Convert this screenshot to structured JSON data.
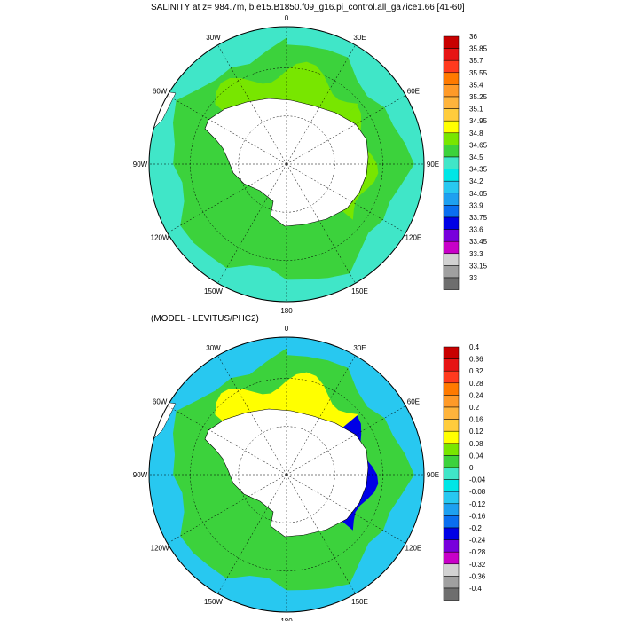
{
  "figure": {
    "top_title": "SALINITY at z= 984.7m, b.e15.B1850.f09_g16.pi_control.all_ga7ice1.66 [41-60]",
    "bottom_title": "(MODEL - LEVITUS/PHC2)"
  },
  "chart_data": [
    {
      "type": "heatmap",
      "projection": "south-polar-stereographic",
      "title": "SALINITY at z= 984.7m, b.e15.B1850.f09_g16.pi_control.all_ga7ice1.66 [41-60]",
      "longitude_labels": [
        "0",
        "30E",
        "60E",
        "90E",
        "120E",
        "150E",
        "180",
        "150W",
        "120W",
        "90W",
        "60W",
        "30W"
      ],
      "colorbar": {
        "labels": [
          "36",
          "35.85",
          "35.7",
          "35.55",
          "35.4",
          "35.25",
          "35.1",
          "34.95",
          "34.8",
          "34.65",
          "34.5",
          "34.35",
          "34.2",
          "34.05",
          "33.9",
          "33.75",
          "33.6",
          "33.45",
          "33.3",
          "33.15",
          "33"
        ],
        "colors": [
          "#c80000",
          "#e61414",
          "#ff3a1e",
          "#ff7a00",
          "#ff9a28",
          "#ffb43c",
          "#ffcc3c",
          "#ffff00",
          "#78e600",
          "#3cd23c",
          "#40e6c8",
          "#00e6e6",
          "#28c8f0",
          "#1ea0f0",
          "#0a6ef0",
          "#0000e6",
          "#7800dc",
          "#c800c8",
          "#d2d2d2",
          "#a0a0a0",
          "#6e6e6e"
        ]
      },
      "regions": [
        {
          "name": "cold-ring",
          "value": 34.5
        },
        {
          "name": "main-band",
          "value": 34.75
        },
        {
          "name": "upper-high",
          "value": 34.9
        },
        {
          "name": "right-high",
          "value": 34.9
        }
      ]
    },
    {
      "type": "heatmap",
      "projection": "south-polar-stereographic",
      "title": "(MODEL - LEVITUS/PHC2)",
      "longitude_labels": [
        "0",
        "30E",
        "60E",
        "90E",
        "120E",
        "150E",
        "180",
        "150W",
        "120W",
        "90W",
        "60W",
        "30W"
      ],
      "colorbar": {
        "labels": [
          "0.4",
          "0.36",
          "0.32",
          "0.28",
          "0.24",
          "0.2",
          "0.16",
          "0.12",
          "0.08",
          "0.04",
          "0",
          "-0.04",
          "-0.08",
          "-0.12",
          "-0.16",
          "-0.2",
          "-0.24",
          "-0.28",
          "-0.32",
          "-0.36",
          "-0.4"
        ],
        "colors": [
          "#c80000",
          "#e61414",
          "#ff3a1e",
          "#ff7a00",
          "#ff9a28",
          "#ffb43c",
          "#ffcc3c",
          "#ffff00",
          "#78e600",
          "#3cd23c",
          "#40e6c8",
          "#00e6e6",
          "#28c8f0",
          "#1ea0f0",
          "#0a6ef0",
          "#0000e6",
          "#7800dc",
          "#c800c8",
          "#d2d2d2",
          "#a0a0a0",
          "#6e6e6e"
        ]
      },
      "regions": [
        {
          "name": "negative-ring",
          "value": -0.06
        },
        {
          "name": "near-zero-band",
          "value": 0.04
        },
        {
          "name": "positive-wedge",
          "value": 0.14
        },
        {
          "name": "strong-negative-east",
          "value": -0.2
        }
      ]
    }
  ]
}
